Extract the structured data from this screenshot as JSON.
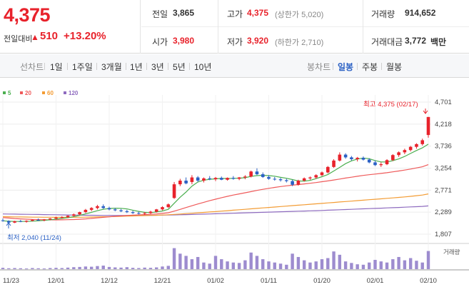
{
  "quote": {
    "price": "4,375",
    "change_label": "전일대비",
    "change_arrow": "▲",
    "change_value": "510",
    "change_percent": "+13.20%",
    "fields": {
      "prev_close": {
        "label": "전일",
        "value": "3,865"
      },
      "high": {
        "label": "고가",
        "value": "4,375",
        "sub": "(상한가 5,020)"
      },
      "volume": {
        "label": "거래량",
        "value": "914,652"
      },
      "open": {
        "label": "시가",
        "value": "3,980"
      },
      "low": {
        "label": "저가",
        "value": "3,920",
        "sub": "(하한가 2,710)"
      },
      "trade_value": {
        "label": "거래대금",
        "value": "3,772",
        "unit": "백만"
      }
    }
  },
  "toolbar": {
    "line_chart": "선차트",
    "periods": [
      "1일",
      "1주일",
      "3개월",
      "1년",
      "3년",
      "5년",
      "10년"
    ],
    "candle_chart": "봉차트",
    "candle_periods": [
      "일봉",
      "주봉",
      "월봉"
    ],
    "active_candle_period": "일봉"
  },
  "colors": {
    "up": "#e8222b",
    "down": "#2a60c4",
    "ma5": "#4caf50",
    "ma20": "#ef5a5a",
    "ma60": "#f39c34",
    "ma120": "#8e6bbf",
    "volume": "#9d8ccf"
  },
  "chart_data": {
    "type": "candlestick",
    "legend": [
      {
        "name": "5",
        "color": "#4caf50"
      },
      {
        "name": "20",
        "color": "#ef5a5a"
      },
      {
        "name": "60",
        "color": "#f39c34"
      },
      {
        "name": "120",
        "color": "#8e6bbf"
      }
    ],
    "y_ticks": [
      "4,701",
      "4,218",
      "3,736",
      "3,254",
      "2,771",
      "2,289",
      "1,807"
    ],
    "ylim": [
      1807,
      4701
    ],
    "x_ticks": [
      "11/23",
      "12/01",
      "12/12",
      "12/21",
      "01/02",
      "01/11",
      "01/20",
      "02/01",
      "02/10"
    ],
    "x_tick_index": [
      0,
      9,
      18,
      27,
      36,
      45,
      54,
      63,
      72
    ],
    "high_annotation": "최고 4,375 (02/17)",
    "low_annotation": "최저 2,040 (11/24)",
    "volume_label": "거래량",
    "ohlc": [
      [
        2110,
        2150,
        2080,
        2095
      ],
      [
        2095,
        2110,
        2040,
        2060
      ],
      [
        2060,
        2100,
        2050,
        2090
      ],
      [
        2090,
        2120,
        2070,
        2080
      ],
      [
        2080,
        2110,
        2060,
        2100
      ],
      [
        2100,
        2130,
        2090,
        2120
      ],
      [
        2120,
        2150,
        2100,
        2110
      ],
      [
        2110,
        2140,
        2090,
        2130
      ],
      [
        2130,
        2160,
        2110,
        2150
      ],
      [
        2150,
        2190,
        2130,
        2170
      ],
      [
        2170,
        2200,
        2150,
        2180
      ],
      [
        2180,
        2220,
        2160,
        2210
      ],
      [
        2210,
        2260,
        2190,
        2240
      ],
      [
        2240,
        2300,
        2220,
        2290
      ],
      [
        2290,
        2360,
        2270,
        2340
      ],
      [
        2340,
        2400,
        2310,
        2380
      ],
      [
        2380,
        2450,
        2350,
        2420
      ],
      [
        2420,
        2460,
        2360,
        2380
      ],
      [
        2380,
        2410,
        2330,
        2350
      ],
      [
        2350,
        2380,
        2310,
        2330
      ],
      [
        2330,
        2360,
        2290,
        2310
      ],
      [
        2310,
        2340,
        2270,
        2290
      ],
      [
        2290,
        2320,
        2250,
        2270
      ],
      [
        2270,
        2300,
        2240,
        2260
      ],
      [
        2260,
        2290,
        2230,
        2270
      ],
      [
        2270,
        2320,
        2250,
        2300
      ],
      [
        2300,
        2360,
        2280,
        2350
      ],
      [
        2350,
        2420,
        2330,
        2400
      ],
      [
        2400,
        2480,
        2380,
        2460
      ],
      [
        2600,
        2950,
        2580,
        2900
      ],
      [
        2900,
        3020,
        2860,
        2980
      ],
      [
        2980,
        3050,
        2900,
        2920
      ],
      [
        2950,
        3100,
        2900,
        3050
      ],
      [
        3050,
        3080,
        2950,
        2980
      ],
      [
        2980,
        3050,
        2940,
        3030
      ],
      [
        3030,
        3080,
        2990,
        3010
      ],
      [
        3010,
        3060,
        2970,
        3040
      ],
      [
        3040,
        3070,
        2990,
        3000
      ],
      [
        3000,
        3050,
        2980,
        3040
      ],
      [
        3040,
        3080,
        3000,
        3020
      ],
      [
        3020,
        3060,
        2990,
        3050
      ],
      [
        3050,
        3100,
        3010,
        3070
      ],
      [
        3070,
        3200,
        3050,
        3180
      ],
      [
        3180,
        3250,
        3100,
        3120
      ],
      [
        3120,
        3160,
        3040,
        3060
      ],
      [
        3060,
        3100,
        3000,
        3020
      ],
      [
        3020,
        3060,
        2980,
        3010
      ],
      [
        3010,
        3040,
        2960,
        2990
      ],
      [
        2990,
        3020,
        2940,
        2970
      ],
      [
        2970,
        3000,
        2860,
        2890
      ],
      [
        2890,
        3000,
        2870,
        2980
      ],
      [
        2980,
        3050,
        2960,
        3030
      ],
      [
        3030,
        3070,
        3000,
        3050
      ],
      [
        3050,
        3120,
        3020,
        3100
      ],
      [
        3100,
        3180,
        3080,
        3160
      ],
      [
        3160,
        3300,
        3140,
        3280
      ],
      [
        3280,
        3450,
        3260,
        3420
      ],
      [
        3420,
        3600,
        3400,
        3550
      ],
      [
        3550,
        3580,
        3460,
        3490
      ],
      [
        3490,
        3520,
        3420,
        3450
      ],
      [
        3450,
        3500,
        3400,
        3480
      ],
      [
        3480,
        3510,
        3420,
        3440
      ],
      [
        3440,
        3470,
        3360,
        3380
      ],
      [
        3380,
        3420,
        3300,
        3320
      ],
      [
        3320,
        3380,
        3280,
        3340
      ],
      [
        3340,
        3450,
        3320,
        3430
      ],
      [
        3430,
        3560,
        3410,
        3540
      ],
      [
        3540,
        3620,
        3500,
        3600
      ],
      [
        3600,
        3680,
        3560,
        3650
      ],
      [
        3650,
        3740,
        3620,
        3720
      ],
      [
        3720,
        3800,
        3680,
        3780
      ],
      [
        3780,
        3900,
        3750,
        3865
      ],
      [
        3980,
        4375,
        3920,
        4375
      ]
    ],
    "ma5": [
      2100,
      2090,
      2085,
      2085,
      2085,
      2092,
      2100,
      2110,
      2122,
      2136,
      2152,
      2168,
      2190,
      2218,
      2252,
      2286,
      2322,
      2352,
      2370,
      2376,
      2374,
      2360,
      2332,
      2306,
      2286,
      2280,
      2294,
      2316,
      2352,
      2484,
      2616,
      2730,
      2860,
      2950,
      2990,
      3010,
      3020,
      3028,
      3026,
      3030,
      3034,
      3044,
      3074,
      3090,
      3098,
      3090,
      3078,
      3052,
      3032,
      3004,
      2974,
      2968,
      2986,
      3024,
      3066,
      3114,
      3192,
      3270,
      3352,
      3414,
      3452,
      3474,
      3460,
      3420,
      3390,
      3388,
      3418,
      3456,
      3510,
      3576,
      3640,
      3698,
      3780
    ],
    "ma20": [
      2170,
      2160,
      2150,
      2142,
      2136,
      2130,
      2126,
      2123,
      2121,
      2120,
      2121,
      2124,
      2128,
      2134,
      2142,
      2152,
      2164,
      2176,
      2188,
      2198,
      2208,
      2216,
      2224,
      2230,
      2236,
      2242,
      2250,
      2262,
      2276,
      2312,
      2350,
      2390,
      2430,
      2468,
      2504,
      2540,
      2574,
      2606,
      2636,
      2664,
      2690,
      2714,
      2740,
      2766,
      2790,
      2812,
      2832,
      2850,
      2866,
      2880,
      2894,
      2908,
      2922,
      2938,
      2956,
      2974,
      2994,
      3014,
      3036,
      3056,
      3076,
      3094,
      3110,
      3124,
      3138,
      3154,
      3172,
      3192,
      3212,
      3234,
      3258,
      3284,
      3330
    ],
    "ma60": [
      2190,
      2188,
      2186,
      2184,
      2182,
      2180,
      2179,
      2178,
      2177,
      2176,
      2176,
      2176,
      2177,
      2178,
      2180,
      2182,
      2185,
      2188,
      2191,
      2194,
      2198,
      2202,
      2206,
      2210,
      2214,
      2218,
      2222,
      2227,
      2232,
      2240,
      2248,
      2257,
      2266,
      2275,
      2284,
      2293,
      2302,
      2312,
      2322,
      2332,
      2342,
      2352,
      2362,
      2372,
      2382,
      2392,
      2402,
      2412,
      2422,
      2432,
      2442,
      2452,
      2462,
      2472,
      2482,
      2492,
      2502,
      2512,
      2522,
      2532,
      2542,
      2552,
      2562,
      2572,
      2582,
      2592,
      2602,
      2612,
      2624,
      2636,
      2650,
      2664,
      2690
    ],
    "ma120": [
      2250,
      2248,
      2246,
      2244,
      2242,
      2240,
      2238,
      2236,
      2234,
      2232,
      2230,
      2228,
      2226,
      2224,
      2222,
      2221,
      2220,
      2219,
      2218,
      2217,
      2217,
      2217,
      2217,
      2218,
      2219,
      2220,
      2222,
      2224,
      2226,
      2229,
      2232,
      2235,
      2238,
      2242,
      2246,
      2250,
      2254,
      2258,
      2262,
      2266,
      2270,
      2274,
      2278,
      2282,
      2286,
      2290,
      2294,
      2298,
      2302,
      2306,
      2310,
      2314,
      2318,
      2322,
      2327,
      2332,
      2337,
      2342,
      2347,
      2352,
      2357,
      2362,
      2367,
      2372,
      2377,
      2382,
      2387,
      2392,
      2398,
      2404,
      2410,
      2416,
      2426
    ],
    "volume_rel": [
      0.06,
      0.04,
      0.05,
      0.04,
      0.03,
      0.05,
      0.04,
      0.03,
      0.05,
      0.06,
      0.05,
      0.07,
      0.09,
      0.1,
      0.12,
      0.11,
      0.14,
      0.16,
      0.1,
      0.08,
      0.07,
      0.09,
      0.06,
      0.05,
      0.07,
      0.06,
      0.08,
      0.12,
      0.15,
      0.95,
      0.7,
      0.6,
      0.45,
      0.55,
      0.3,
      0.25,
      0.6,
      0.45,
      0.35,
      0.3,
      0.28,
      0.4,
      0.75,
      0.6,
      0.45,
      0.35,
      0.3,
      0.25,
      0.2,
      0.7,
      0.55,
      0.4,
      0.3,
      0.35,
      0.45,
      0.5,
      0.8,
      0.65,
      0.35,
      0.28,
      0.22,
      0.2,
      0.3,
      0.42,
      0.35,
      0.3,
      0.45,
      0.55,
      0.4,
      0.5,
      0.38,
      0.3,
      0.82
    ]
  }
}
